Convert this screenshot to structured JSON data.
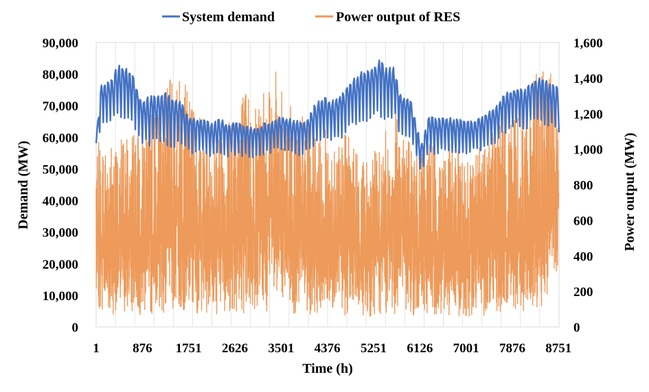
{
  "chart_data": {
    "type": "line",
    "xlabel": "Time (h)",
    "ylabel_left": "Demand (MW)",
    "ylabel_right": "Power output (MW)",
    "xlim": [
      1,
      8760
    ],
    "ylim_left": [
      0,
      90000
    ],
    "ylim_right": [
      0,
      1600
    ],
    "x_ticks": [
      1,
      876,
      1751,
      2626,
      3501,
      4376,
      5251,
      6126,
      7001,
      7876,
      8751
    ],
    "x_tick_labels": [
      "1",
      "876",
      "1751",
      "2626",
      "3501",
      "4376",
      "5251",
      "6126",
      "7001",
      "7876",
      "8751"
    ],
    "y_left_ticks": [
      0,
      10000,
      20000,
      30000,
      40000,
      50000,
      60000,
      70000,
      80000,
      90000
    ],
    "y_left_tick_labels": [
      "0",
      "10,000",
      "20,000",
      "30,000",
      "40,000",
      "50,000",
      "60,000",
      "70,000",
      "80,000",
      "90,000"
    ],
    "y_right_ticks": [
      0,
      200,
      400,
      600,
      800,
      1000,
      1200,
      1400,
      1600
    ],
    "y_right_tick_labels": [
      "0",
      "200",
      "400",
      "600",
      "800",
      "1,000",
      "1,200",
      "1,400",
      "1,600"
    ],
    "grid": "vertical",
    "legend_position": "top-center",
    "colors": {
      "demand": "#4472C4",
      "res": "#ED9A5A"
    },
    "series": [
      {
        "name": "System demand",
        "axis": "left",
        "x": [
          1,
          100,
          200,
          300,
          420,
          560,
          700,
          860,
          1000,
          1150,
          1300,
          1450,
          1600,
          1750,
          1900,
          2050,
          2200,
          2350,
          2500,
          2650,
          2800,
          2950,
          3100,
          3250,
          3400,
          3550,
          3700,
          3850,
          4000,
          4150,
          4300,
          4450,
          4600,
          4750,
          4900,
          5050,
          5200,
          5350,
          5500,
          5650,
          5750,
          5850,
          5950,
          6050,
          6150,
          6300,
          6450,
          6600,
          6750,
          6900,
          7050,
          7200,
          7350,
          7500,
          7650,
          7800,
          7950,
          8100,
          8250,
          8400,
          8550,
          8700,
          8760
        ],
        "y": [
          59000,
          77000,
          77000,
          79000,
          83000,
          82000,
          80000,
          72000,
          73000,
          74000,
          75000,
          73000,
          72000,
          67000,
          66000,
          66000,
          65000,
          66000,
          64000,
          65000,
          64000,
          63000,
          64000,
          65000,
          66000,
          67000,
          66000,
          65000,
          66000,
          71000,
          73000,
          72000,
          73000,
          76000,
          80000,
          81000,
          81000,
          85000,
          82000,
          83000,
          74000,
          73000,
          72000,
          65000,
          58000,
          67000,
          66000,
          67000,
          66000,
          66000,
          65000,
          66000,
          67000,
          69000,
          72000,
          75000,
          76000,
          75000,
          78000,
          79000,
          78000,
          77000,
          74000
        ],
        "y_min": [
          58000,
          62000,
          62000,
          64000,
          66000,
          64000,
          62000,
          57000,
          56000,
          57000,
          57000,
          55000,
          56000,
          54000,
          54000,
          54000,
          53000,
          54000,
          53000,
          54000,
          53000,
          52000,
          53000,
          54000,
          55000,
          55000,
          54000,
          53000,
          54000,
          56000,
          58000,
          57000,
          58000,
          61000,
          63000,
          64000,
          64000,
          66000,
          64000,
          65000,
          59000,
          58000,
          57000,
          53000,
          48000,
          54000,
          54000,
          55000,
          54000,
          54000,
          54000,
          55000,
          55000,
          56000,
          59000,
          61000,
          62000,
          61000,
          63000,
          63000,
          62000,
          61000,
          60000
        ]
      },
      {
        "name": "Power output of RES",
        "axis": "right",
        "x": [
          1,
          300,
          600,
          900,
          1200,
          1500,
          1800,
          2100,
          2400,
          2700,
          3000,
          3300,
          3600,
          3900,
          4200,
          4500,
          4800,
          5100,
          5400,
          5700,
          6000,
          6300,
          6600,
          6900,
          7200,
          7500,
          7800,
          8100,
          8400,
          8760
        ],
        "y": [
          1040,
          1050,
          1120,
          1200,
          1250,
          1460,
          1310,
          1180,
          1200,
          1390,
          1290,
          1510,
          1300,
          1210,
          1080,
          1140,
          1080,
          950,
          1040,
          1300,
          1010,
          1110,
          1050,
          1000,
          1010,
          1200,
          1260,
          1260,
          1480,
          1400
        ],
        "y_min": [
          50,
          20,
          10,
          10,
          10,
          10,
          10,
          10,
          10,
          10,
          10,
          10,
          10,
          10,
          10,
          10,
          10,
          10,
          10,
          10,
          10,
          10,
          10,
          10,
          10,
          10,
          10,
          10,
          10,
          250
        ]
      }
    ]
  }
}
